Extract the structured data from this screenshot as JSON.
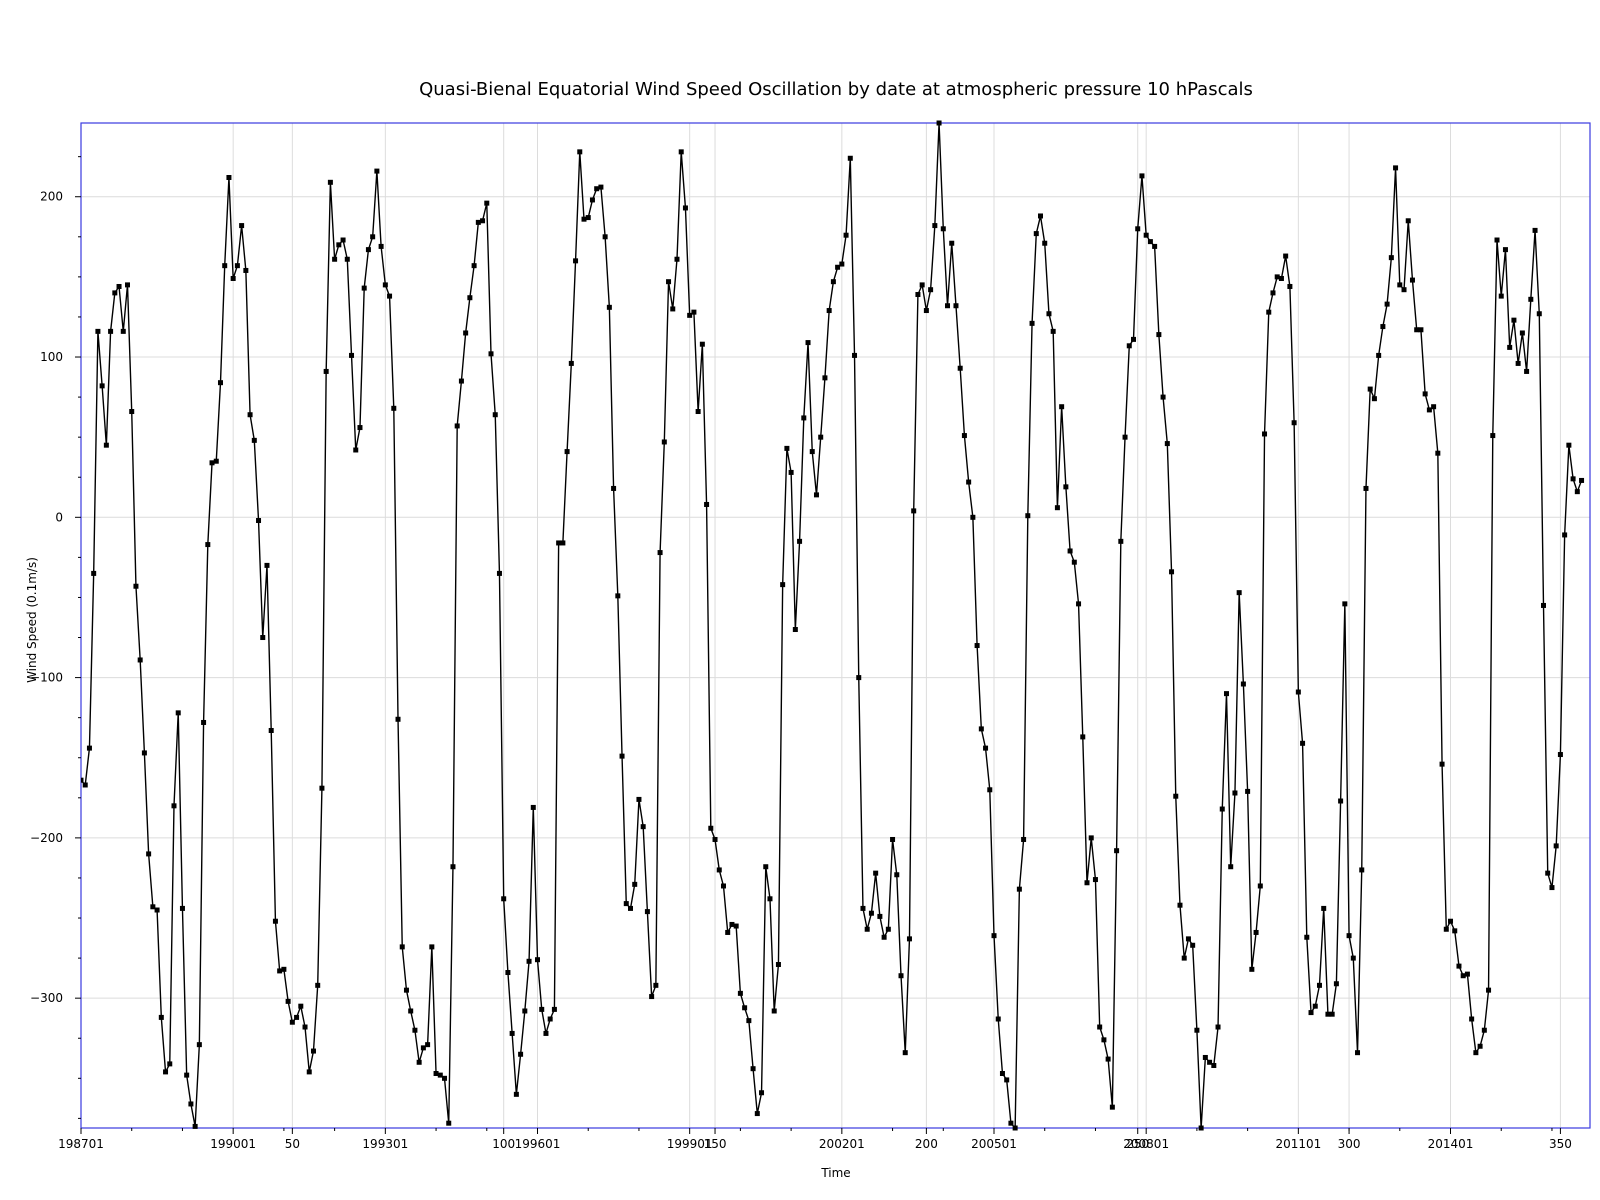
{
  "chart_data": {
    "type": "line",
    "title": "Quasi-Bienal Equatorial Wind Speed Oscillation by date at atmospheric pressure 10 hPascals",
    "xlabel": "Time",
    "ylabel": "Wind Speed (0.1m/s)",
    "ylim": [
      -381,
      246
    ],
    "y_ticks": [
      -300,
      -200,
      -100,
      0,
      100,
      200
    ],
    "x_ticks": [
      {
        "index": 0,
        "label": "198701"
      },
      {
        "index": 36,
        "label": "199001"
      },
      {
        "index": 50,
        "label": "50"
      },
      {
        "index": 72,
        "label": "199301"
      },
      {
        "index": 100,
        "label": "100"
      },
      {
        "index": 108,
        "label": "199601"
      },
      {
        "index": 144,
        "label": "199901"
      },
      {
        "index": 150,
        "label": "150"
      },
      {
        "index": 180,
        "label": "200201"
      },
      {
        "index": 200,
        "label": "200"
      },
      {
        "index": 216,
        "label": "200501"
      },
      {
        "index": 250,
        "label": "250"
      },
      {
        "index": 252,
        "label": "200801"
      },
      {
        "index": 288,
        "label": "201101"
      },
      {
        "index": 300,
        "label": "300"
      },
      {
        "index": 324,
        "label": "201401"
      },
      {
        "index": 350,
        "label": "350"
      }
    ],
    "x_range": [
      0,
      357
    ],
    "grid": true,
    "series": [
      {
        "name": "",
        "values": [
          -164,
          -167,
          -144,
          -35,
          116,
          82,
          45,
          116,
          140,
          144,
          116,
          145,
          66,
          -43,
          -89,
          -147,
          -210,
          -243,
          -245,
          -312,
          -346,
          -341,
          -180,
          -122,
          -244,
          -348,
          -366,
          -380,
          -329,
          -128,
          -17,
          34,
          35,
          84,
          157,
          212,
          149,
          157,
          182,
          154,
          64,
          48,
          -2,
          -75,
          -30,
          -133,
          -252,
          -283,
          -282,
          -302,
          -315,
          -312,
          -305,
          -318,
          -346,
          -333,
          -292,
          -169,
          91,
          209,
          161,
          170,
          173,
          161,
          101,
          42,
          56,
          143,
          167,
          175,
          216,
          169,
          145,
          138,
          68,
          -126,
          -268,
          -295,
          -308,
          -320,
          -340,
          -331,
          -329,
          -268,
          -347,
          -348,
          -350,
          -378,
          -218,
          57,
          85,
          115,
          137,
          157,
          184,
          185,
          196,
          102,
          64,
          -35,
          -238,
          -284,
          -322,
          -360,
          -335,
          -308,
          -277,
          -181,
          -276,
          -307,
          -322,
          -313,
          -307,
          -16,
          -16,
          41,
          96,
          160,
          228,
          186,
          187,
          198,
          205,
          206,
          175,
          131,
          18,
          -49,
          -149,
          -241,
          -244,
          -229,
          -176,
          -193,
          -246,
          -299,
          -292,
          -22,
          47,
          147,
          130,
          161,
          228,
          193,
          126,
          128,
          66,
          108,
          8,
          -194,
          -201,
          -220,
          -230,
          -259,
          -254,
          -255,
          -297,
          -306,
          -314,
          -344,
          -372,
          -359,
          -218,
          -238,
          -308,
          -279,
          -42,
          43,
          28,
          -70,
          -15,
          62,
          109,
          41,
          14,
          50,
          87,
          129,
          147,
          156,
          158,
          176,
          224,
          101,
          -100,
          -244,
          -257,
          -247,
          -222,
          -249,
          -262,
          -257,
          -201,
          -223,
          -286,
          -334,
          -263,
          4,
          139,
          145,
          129,
          142,
          182,
          246,
          180,
          132,
          171,
          132,
          93,
          51,
          22,
          0,
          -80,
          -132,
          -144,
          -170,
          -261,
          -313,
          -347,
          -351,
          -378,
          -381,
          -232,
          -201,
          1,
          121,
          177,
          188,
          171,
          127,
          116,
          6,
          69,
          19,
          -21,
          -28,
          -54,
          -137,
          -228,
          -200,
          -226,
          -318,
          -326,
          -338,
          -368,
          -208,
          -15,
          50,
          107,
          111,
          180,
          213,
          176,
          172,
          169,
          114,
          75,
          46,
          -34,
          -174,
          -242,
          -275,
          -263,
          -267,
          -320,
          -381,
          -337,
          -340,
          -342,
          -318,
          -182,
          -110,
          -218,
          -172,
          -47,
          -104,
          -171,
          -282,
          -259,
          -230,
          52,
          128,
          140,
          150,
          149,
          163,
          144,
          59,
          -109,
          -141,
          -262,
          -309,
          -305,
          -292,
          -244,
          -310,
          -310,
          -291,
          -177,
          -54,
          -261,
          -275,
          -334,
          -220,
          18,
          80,
          74,
          101,
          119,
          133,
          162,
          218,
          145,
          142,
          185,
          148,
          117,
          117,
          77,
          67,
          69,
          40,
          -154,
          -257,
          -252,
          -258,
          -280,
          -286,
          -285,
          -313,
          -334,
          -330,
          -320,
          -295,
          51,
          173,
          138,
          167,
          106,
          123,
          96,
          115,
          91,
          136,
          179,
          127,
          -55,
          -222,
          -231,
          -205,
          -148,
          -11,
          45,
          24,
          16,
          23
        ]
      }
    ]
  }
}
